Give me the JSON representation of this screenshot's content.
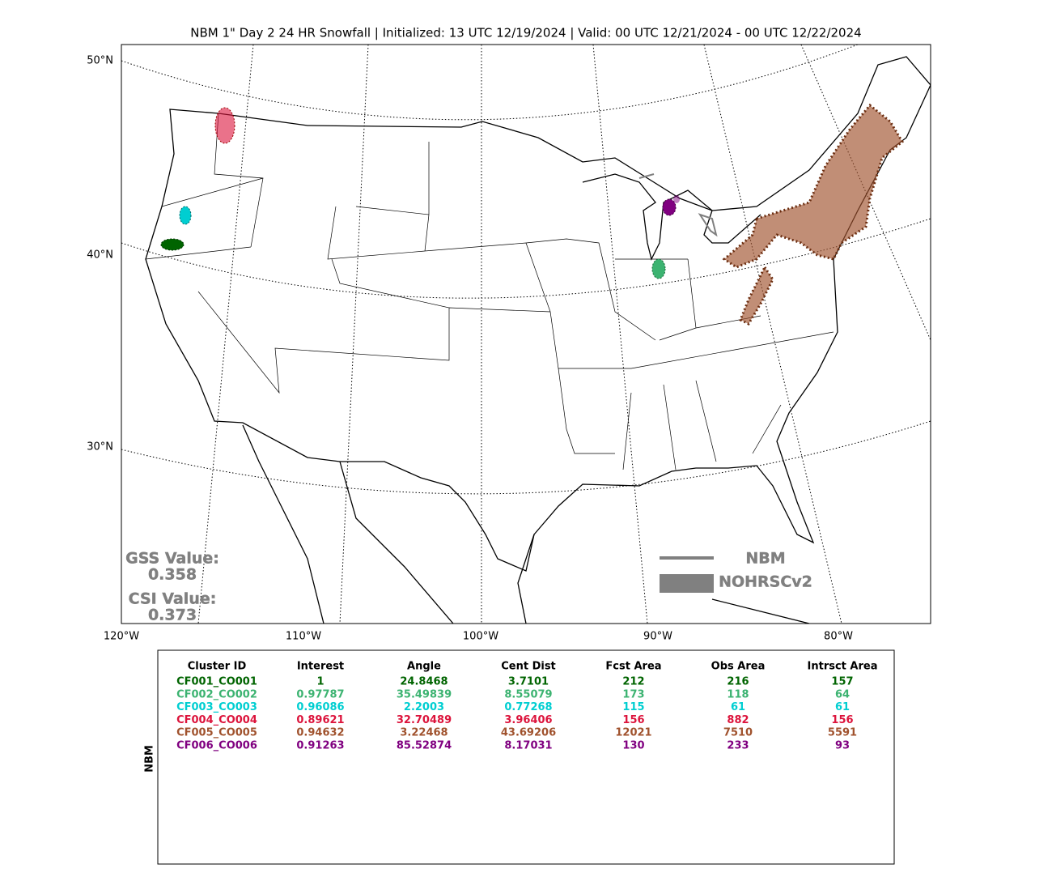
{
  "title": "NBM 1\" Day 2 24 HR Snowfall | Initialized: 13 UTC 12/19/2024 | Valid: 00 UTC 12/21/2024 - 00 UTC 12/22/2024",
  "map": {
    "lat_labels": [
      "50°N",
      "40°N",
      "30°N"
    ],
    "lon_labels": [
      "120°W",
      "110°W",
      "100°W",
      "90°W",
      "80°W"
    ]
  },
  "legend": {
    "items": [
      "NBM",
      "NOHRSCv2"
    ]
  },
  "scores": {
    "gss_label": "GSS Value:",
    "gss_value": 0.358,
    "csi_label": "CSI Value:",
    "csi_value": 0.373
  },
  "table": {
    "side_label": "NBM",
    "columns": [
      "Cluster ID",
      "Interest",
      "Angle",
      "Cent Dist",
      "Fcst Area",
      "Obs Area",
      "Intrsct Area"
    ],
    "row_colors": [
      "#006400",
      "#3cb371",
      "#00ced1",
      "#dc143c",
      "#a0522d",
      "#800080"
    ],
    "rows": [
      [
        "CF001_CO001",
        1,
        24.8468,
        3.7101,
        212,
        216,
        157
      ],
      [
        "CF002_CO002",
        0.97787,
        35.49839,
        8.55079,
        173,
        118,
        64
      ],
      [
        "CF003_CO003",
        0.96086,
        2.2003,
        0.77268,
        115,
        61,
        61
      ],
      [
        "CF004_CO004",
        0.89621,
        32.70489,
        3.96406,
        156,
        882,
        156
      ],
      [
        "CF005_CO005",
        0.94632,
        3.22468,
        43.69206,
        12021,
        7510,
        5591
      ],
      [
        "CF006_CO006",
        0.91263,
        85.52874,
        8.17031,
        130,
        233,
        93
      ]
    ]
  }
}
